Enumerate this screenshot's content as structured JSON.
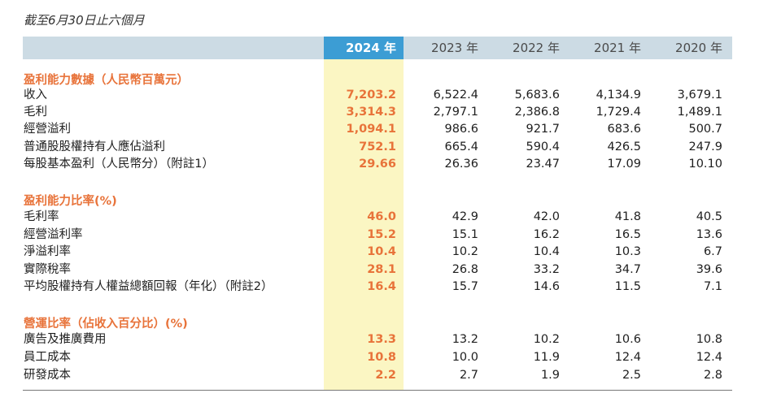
{
  "subtitle": "截至6月30日止六個月",
  "years": [
    "2024 年",
    "2023 年",
    "2022 年",
    "2021 年",
    "2020 年"
  ],
  "sections": [
    {
      "title": "盈利能力數據（人民幣百萬元）",
      "rows": [
        {
          "label": "收入",
          "values": [
            "7,203.2",
            "6,522.4",
            "5,683.6",
            "4,134.9",
            "3,679.1"
          ]
        },
        {
          "label": "毛利",
          "values": [
            "3,314.3",
            "2,797.1",
            "2,386.8",
            "1,729.4",
            "1,489.1"
          ]
        },
        {
          "label": "經營溢利",
          "values": [
            "1,094.1",
            "986.6",
            "921.7",
            "683.6",
            "500.7"
          ]
        },
        {
          "label": "普通股股權持有人應佔溢利",
          "values": [
            "752.1",
            "665.4",
            "590.4",
            "426.5",
            "247.9"
          ]
        },
        {
          "label": "每股基本盈利（人民幣分）（附註1）",
          "values": [
            "29.66",
            "26.36",
            "23.47",
            "17.09",
            "10.10"
          ]
        }
      ]
    },
    {
      "title": "盈利能力比率(%)",
      "rows": [
        {
          "label": "毛利率",
          "values": [
            "46.0",
            "42.9",
            "42.0",
            "41.8",
            "40.5"
          ]
        },
        {
          "label": "經營溢利率",
          "values": [
            "15.2",
            "15.1",
            "16.2",
            "16.5",
            "13.6"
          ]
        },
        {
          "label": "淨溢利率",
          "values": [
            "10.4",
            "10.2",
            "10.4",
            "10.3",
            "6.7"
          ]
        },
        {
          "label": "實際稅率",
          "values": [
            "28.1",
            "26.8",
            "33.2",
            "34.7",
            "39.6"
          ]
        },
        {
          "label": "平均股權持有人權益總額回報（年化）（附註2）",
          "values": [
            "16.4",
            "15.7",
            "14.6",
            "11.5",
            "7.1"
          ]
        }
      ]
    },
    {
      "title": "營運比率（佔收入百分比）(%)",
      "rows": [
        {
          "label": "廣告及推廣費用",
          "values": [
            "13.3",
            "13.2",
            "10.2",
            "10.6",
            "10.8"
          ]
        },
        {
          "label": "員工成本",
          "values": [
            "10.8",
            "10.0",
            "11.9",
            "12.4",
            "12.4"
          ]
        },
        {
          "label": "研發成本",
          "values": [
            "2.2",
            "2.7",
            "1.9",
            "2.5",
            "2.8"
          ]
        }
      ]
    }
  ]
}
